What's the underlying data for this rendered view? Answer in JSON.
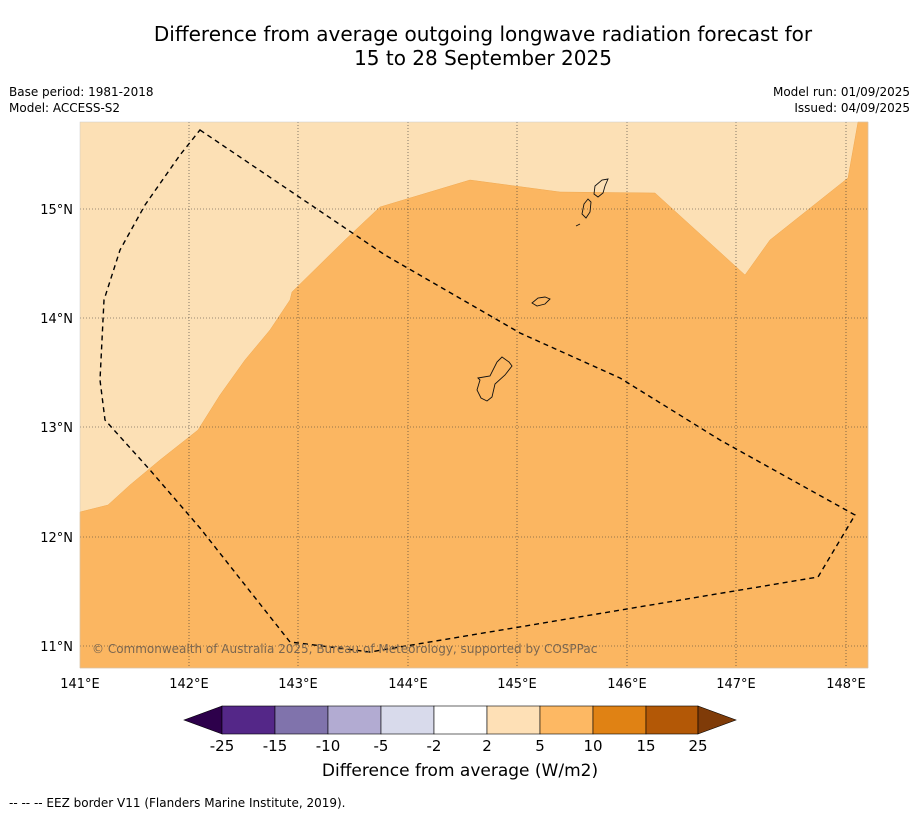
{
  "title_line1": "Difference from average outgoing longwave radiation forecast for",
  "title_line2": "15 to 28 September 2025",
  "meta_left": {
    "base_period": "Base period: 1981-2018",
    "model": "Model: ACCESS-S2"
  },
  "meta_right": {
    "model_run": "Model run: 01/09/2025",
    "issued": "Issued: 04/09/2025"
  },
  "map": {
    "lon_ticks": [
      "141°E",
      "142°E",
      "143°E",
      "144°E",
      "145°E",
      "146°E",
      "147°E",
      "148°E"
    ],
    "lat_ticks": [
      "15°N",
      "14°N",
      "13°N",
      "12°N",
      "11°N"
    ],
    "copyright": "© Commonwealth of Australia 2025, Bureau of Meteorology, supported by COSPPac",
    "colors": {
      "band_2_5": "#fce0b5",
      "band_5_10": "#fbb661"
    }
  },
  "colorbar": {
    "tick_labels": [
      "-25",
      "-15",
      "-10",
      "-5",
      "-2",
      "2",
      "5",
      "10",
      "15",
      "25"
    ],
    "colors": [
      "#2d004b",
      "#542788",
      "#8073ac",
      "#b2abd2",
      "#d8daeb",
      "#ffffff",
      "#fee0b6",
      "#fdb863",
      "#e08214",
      "#b35806",
      "#7f3b08"
    ],
    "label": "Difference from average (W/m2)"
  },
  "footnote": "--  --  -- EEZ border V11 (Flanders Marine Institute, 2019)."
}
